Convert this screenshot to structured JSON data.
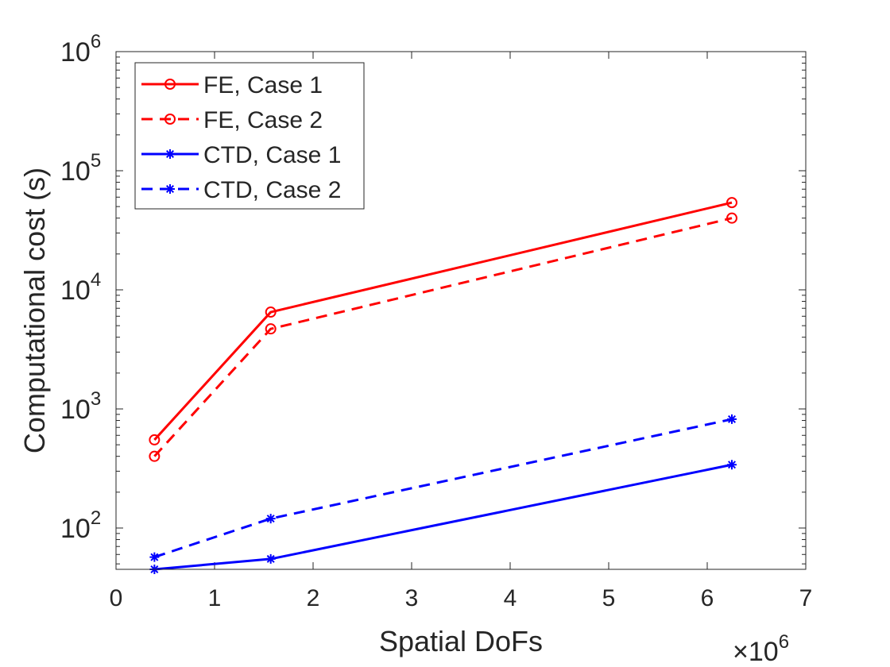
{
  "chart_data": {
    "type": "line",
    "title": "",
    "xlabel": "Spatial DoFs",
    "ylabel": "Computational cost (s)",
    "x_multiplier_base": "×10",
    "x_multiplier_exp": "6",
    "xlim": [
      0,
      7
    ],
    "ylim": [
      45,
      1000000
    ],
    "yscale": "log",
    "x_ticks": [
      0,
      1,
      2,
      3,
      4,
      5,
      6,
      7
    ],
    "x_tick_labels": [
      "0",
      "1",
      "2",
      "3",
      "4",
      "5",
      "6",
      "7"
    ],
    "y_ticks": [
      100,
      1000,
      10000,
      100000,
      1000000
    ],
    "y_tick_base": "10",
    "y_tick_exponents": [
      "2",
      "3",
      "4",
      "5",
      "6"
    ],
    "legend_position": "top-left",
    "series": [
      {
        "name": "FE, Case 1",
        "color": "#ff0000",
        "dash": "solid",
        "marker": "circle",
        "x": [
          0.39,
          1.57,
          6.25
        ],
        "y": [
          550,
          6500,
          54000
        ]
      },
      {
        "name": "FE, Case 2",
        "color": "#ff0000",
        "dash": "dashed",
        "marker": "circle",
        "x": [
          0.39,
          1.57,
          6.25
        ],
        "y": [
          400,
          4700,
          40000
        ]
      },
      {
        "name": "CTD, Case 1",
        "color": "#0000ff",
        "dash": "solid",
        "marker": "star",
        "x": [
          0.39,
          1.57,
          6.25
        ],
        "y": [
          45,
          55,
          340
        ]
      },
      {
        "name": "CTD, Case 2",
        "color": "#0000ff",
        "dash": "dashed",
        "marker": "star",
        "x": [
          0.39,
          1.57,
          6.25
        ],
        "y": [
          57,
          120,
          820
        ]
      }
    ]
  }
}
